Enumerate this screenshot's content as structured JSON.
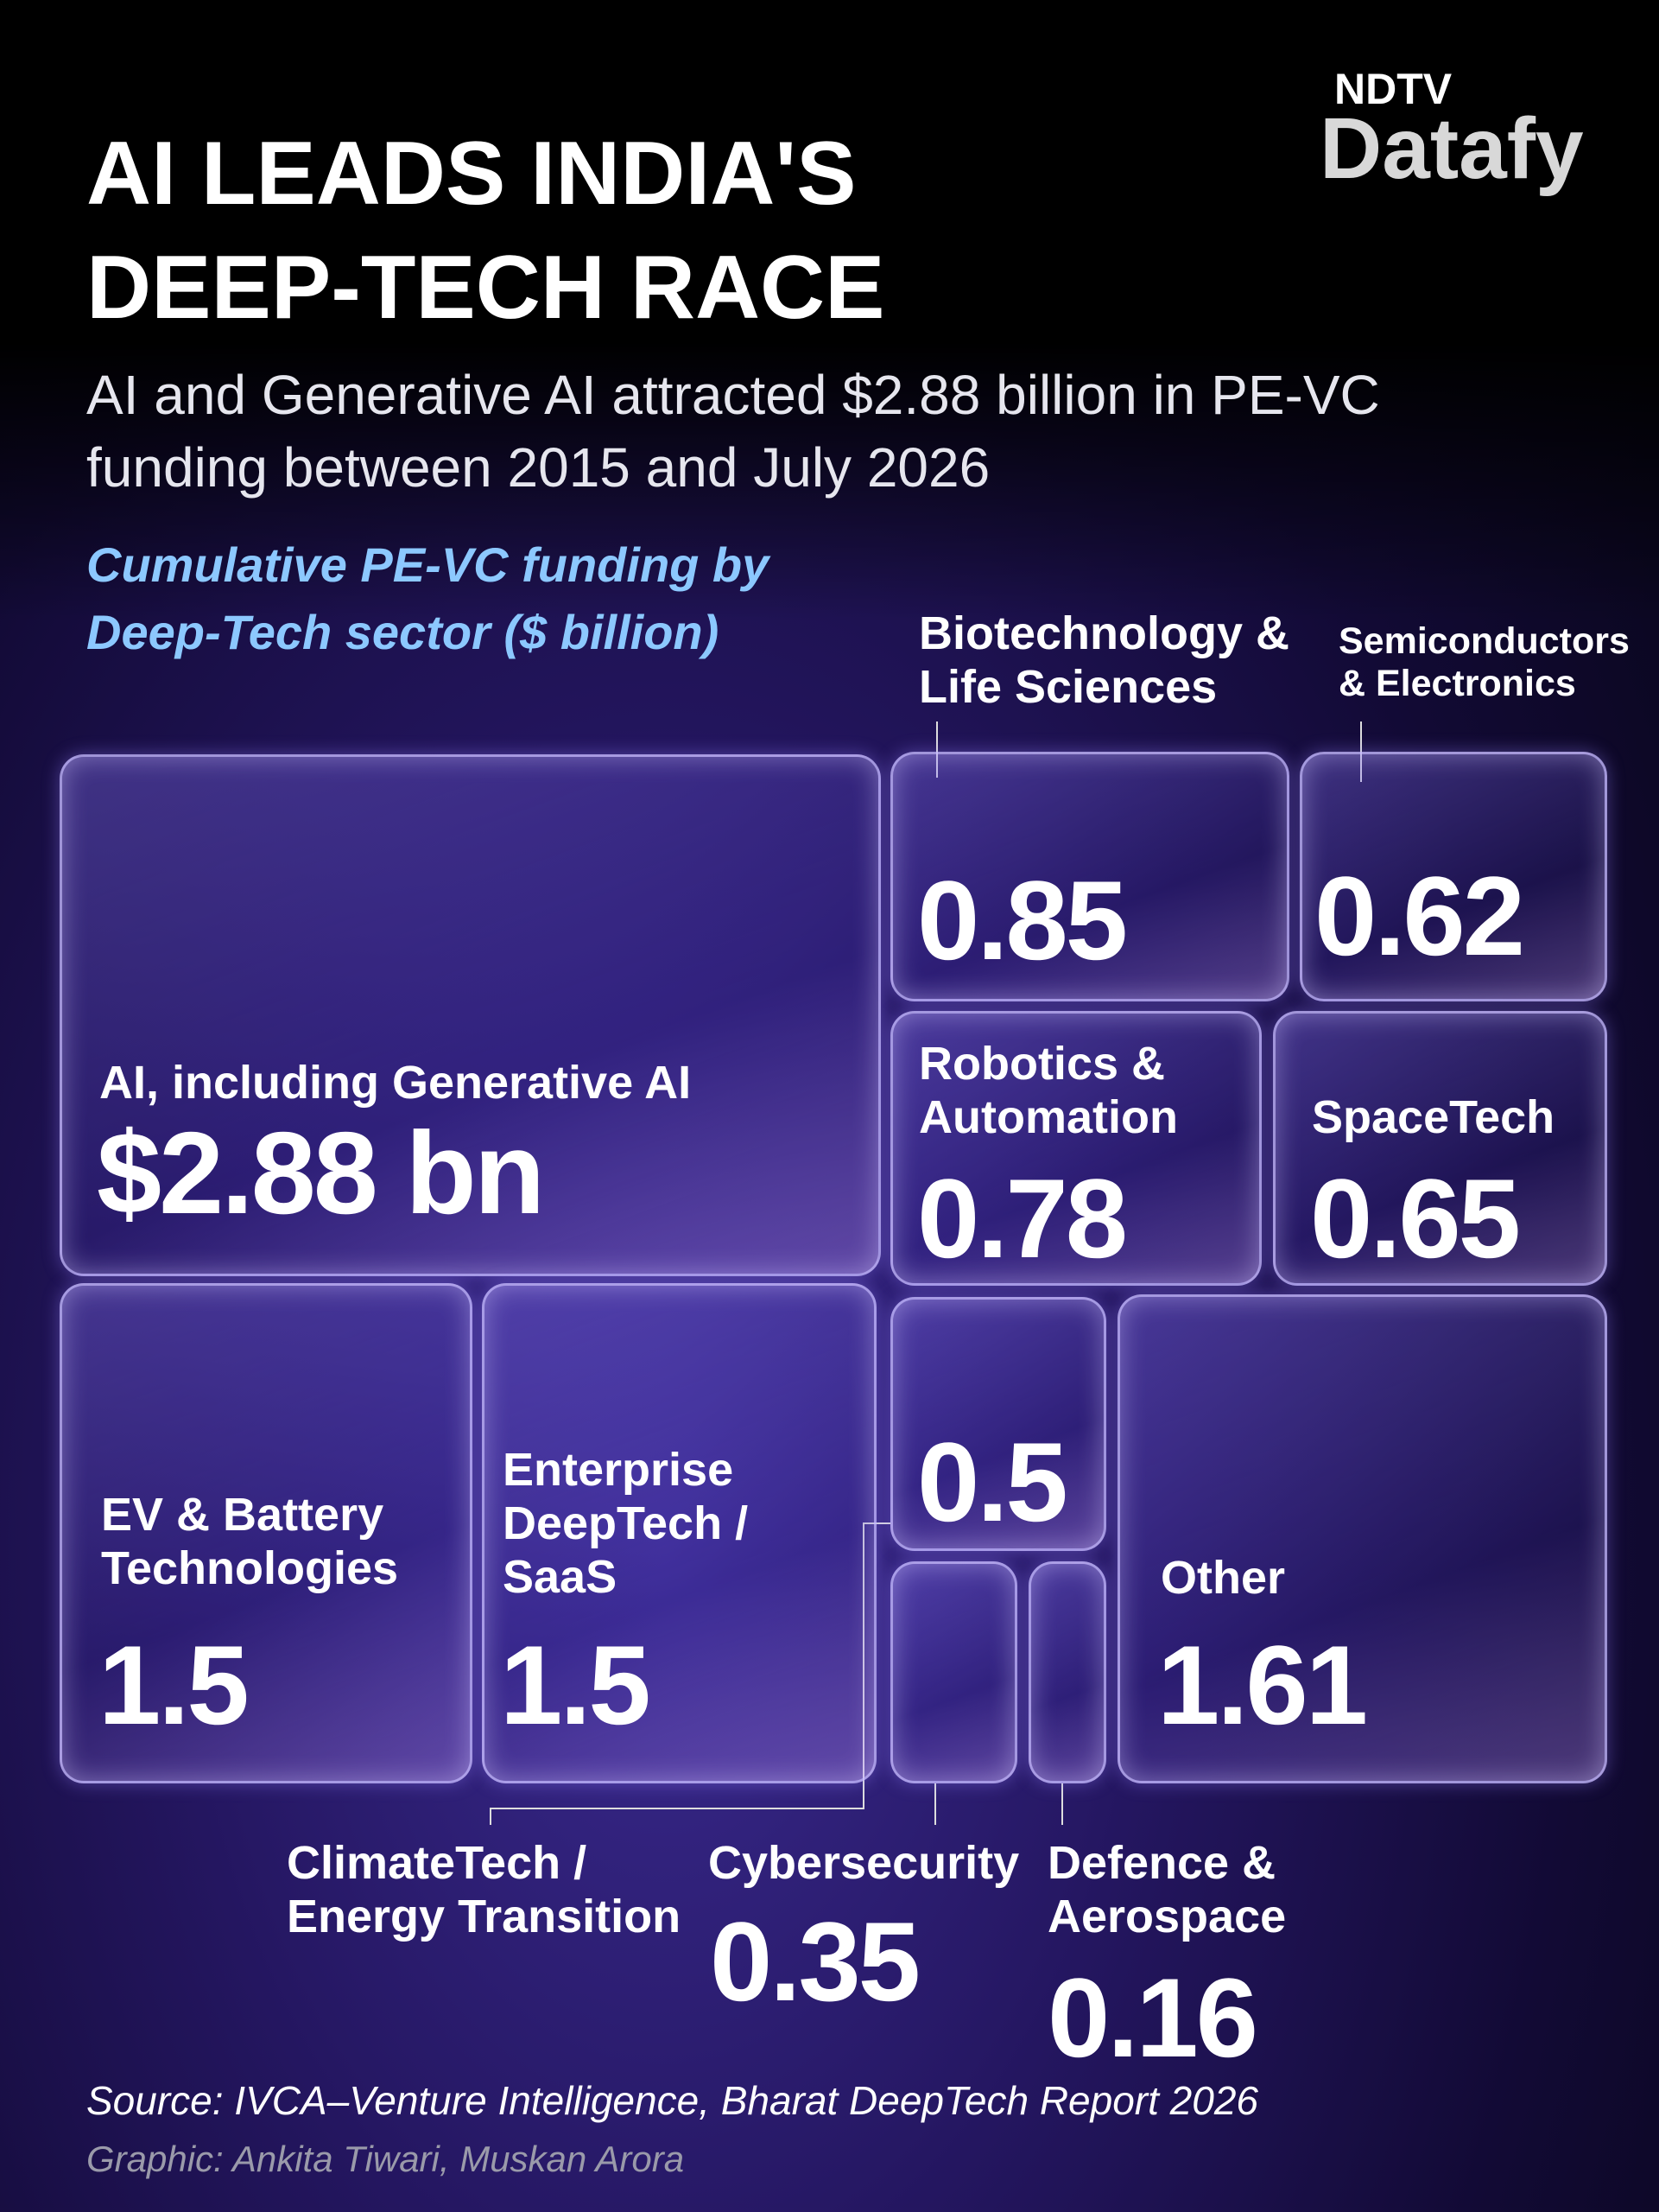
{
  "logo": {
    "top": "NDTV",
    "bottom": "Datafy"
  },
  "chart_data": {
    "type": "treemap",
    "title": "AI LEADS INDIA'S DEEP-TECH RACE",
    "subtitle": "AI and Generative AI attracted $2.88 billion in PE-VC funding between 2015 and July 2026",
    "value_axis_label": "Cumulative PE-VC funding by Deep-Tech sector ($ billion)",
    "categories": [
      "AI, including Generative AI",
      "Biotechnology & Life Sciences",
      "Semiconductors & Electronics",
      "Robotics & Automation",
      "SpaceTech",
      "EV & Battery Technologies",
      "Enterprise DeepTech / SaaS",
      "ClimateTech / Energy Transition",
      "Cybersecurity",
      "Defence & Aerospace",
      "Other"
    ],
    "values": [
      2.88,
      0.85,
      0.62,
      0.78,
      0.65,
      1.5,
      1.5,
      0.5,
      0.35,
      0.16,
      1.61
    ],
    "value_labels": [
      "$2.88 bn",
      "0.85",
      "0.62",
      "0.78",
      "0.65",
      "1.5",
      "1.5",
      "0.5",
      "0.35",
      "0.16",
      "1.61"
    ],
    "source": "Source: IVCA–Venture Intelligence, Bharat DeepTech Report 2026",
    "credit": "Graphic: Ankita Tiwari, Muskan Arora"
  }
}
